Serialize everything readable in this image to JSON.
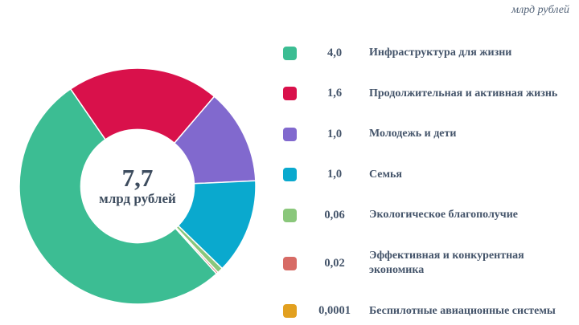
{
  "top_note": "млрд рублей",
  "center": {
    "value": "7,7",
    "unit": "млрд рублей"
  },
  "chart_data": {
    "type": "pie",
    "subtype": "donut",
    "title": "",
    "unit": "млрд рублей",
    "total_value_label": "7,7",
    "total_unit_label": "млрд рублей",
    "total": 7.68,
    "start_angle_deg": 138,
    "donut_hole_ratio": 0.48,
    "slice_gap_color": "#ffffff",
    "items": [
      {
        "label": "Инфраструктура для жизни",
        "value_label": "4,0",
        "value": 4.0,
        "color": "#3cbd93"
      },
      {
        "label": "Продолжительная  и активная жизнь",
        "value_label": "1,6",
        "value": 1.6,
        "color": "#d9114b"
      },
      {
        "label": "Молодежь и дети",
        "value_label": "1,0",
        "value": 1.0,
        "color": "#8169ce"
      },
      {
        "label": "Семья",
        "value_label": "1,0",
        "value": 1.0,
        "color": "#0aa9ce"
      },
      {
        "label": "Экологическое  благополучие",
        "value_label": "0,06",
        "value": 0.06,
        "color": "#8ac77b"
      },
      {
        "label": "Эффективная и конкурентная экономика",
        "value_label": "0,02",
        "value": 0.02,
        "color": "#d76b65"
      },
      {
        "label": "Беспилотные авиационные системы",
        "value_label": "0,0001",
        "value": 0.0001,
        "color": "#e2a01f"
      }
    ],
    "legend_position": "right",
    "center_xy": [
      171,
      232
    ],
    "outer_radius": 147
  }
}
